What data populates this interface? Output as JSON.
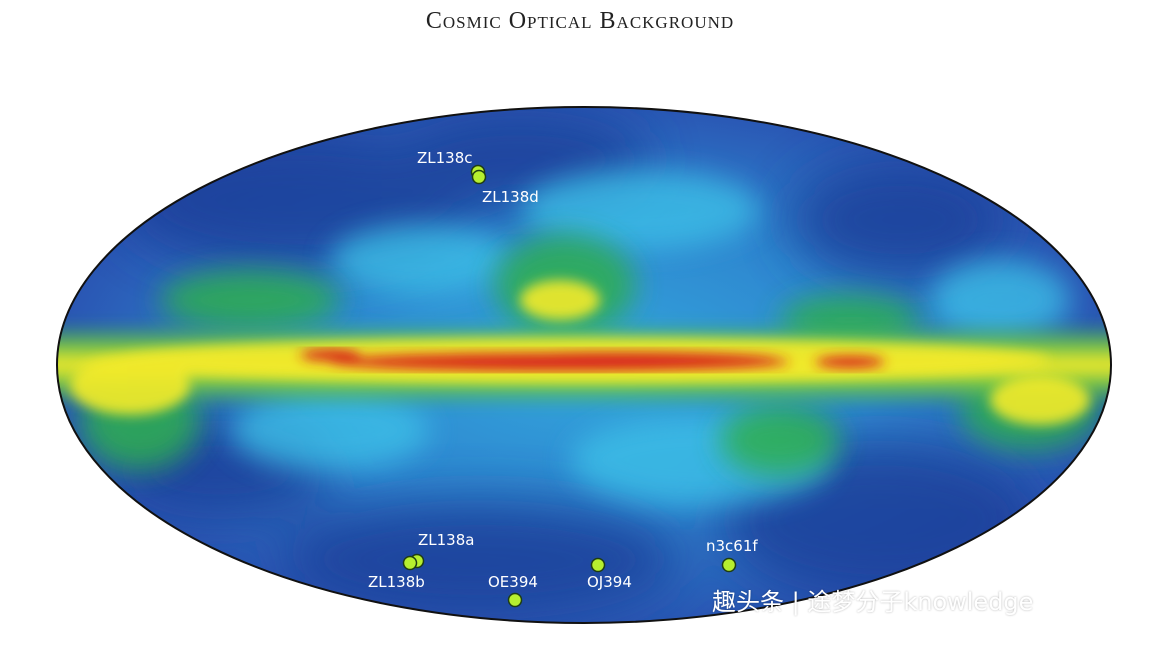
{
  "title": "Cosmic Optical Background",
  "colors": {
    "background": "#ffffff",
    "deep_blue": "#1f3f9a",
    "blue": "#2f78c8",
    "cyan": "#2ea9de",
    "green": "#2fae4f",
    "yellow": "#f3ea2a",
    "red": "#d8261c",
    "marker_fill": "#b6ef2f",
    "marker_stroke": "#1f3d12"
  },
  "fields": [
    {
      "id": "zl138c",
      "label": "ZL138c"
    },
    {
      "id": "zl138d",
      "label": "ZL138d"
    },
    {
      "id": "zl138a",
      "label": "ZL138a"
    },
    {
      "id": "zl138b",
      "label": "ZL138b"
    },
    {
      "id": "oe394",
      "label": "OE394"
    },
    {
      "id": "oj394",
      "label": "OJ394"
    },
    {
      "id": "n3c61f",
      "label": "n3c61f"
    }
  ],
  "watermark": "趣头条 | 途梦分子knowledge"
}
